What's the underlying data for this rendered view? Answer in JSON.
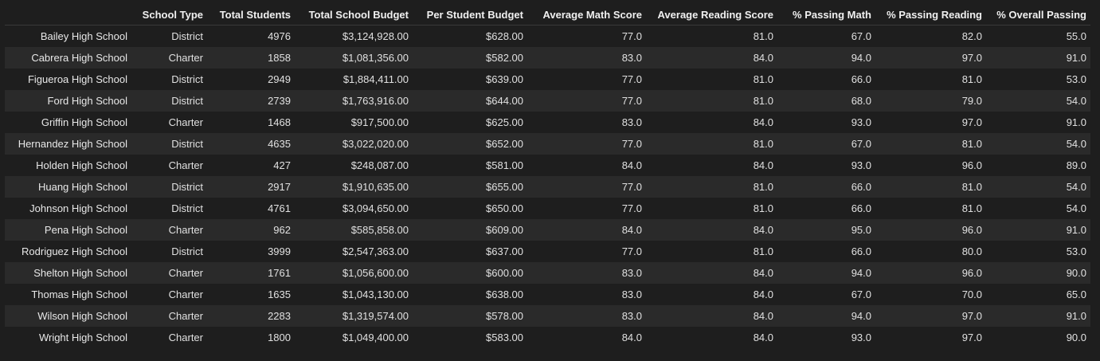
{
  "table": {
    "columns": [
      "",
      "School Type",
      "Total Students",
      "Total School Budget",
      "Per Student Budget",
      "Average Math Score",
      "Average Reading Score",
      "% Passing Math",
      "% Passing Reading",
      "% Overall Passing"
    ],
    "rows": [
      {
        "name": "Bailey High School",
        "cells": [
          "District",
          "4976",
          "$3,124,928.00",
          "$628.00",
          "77.0",
          "81.0",
          "67.0",
          "82.0",
          "55.0"
        ]
      },
      {
        "name": "Cabrera High School",
        "cells": [
          "Charter",
          "1858",
          "$1,081,356.00",
          "$582.00",
          "83.0",
          "84.0",
          "94.0",
          "97.0",
          "91.0"
        ]
      },
      {
        "name": "Figueroa High School",
        "cells": [
          "District",
          "2949",
          "$1,884,411.00",
          "$639.00",
          "77.0",
          "81.0",
          "66.0",
          "81.0",
          "53.0"
        ]
      },
      {
        "name": "Ford High School",
        "cells": [
          "District",
          "2739",
          "$1,763,916.00",
          "$644.00",
          "77.0",
          "81.0",
          "68.0",
          "79.0",
          "54.0"
        ]
      },
      {
        "name": "Griffin High School",
        "cells": [
          "Charter",
          "1468",
          "$917,500.00",
          "$625.00",
          "83.0",
          "84.0",
          "93.0",
          "97.0",
          "91.0"
        ]
      },
      {
        "name": "Hernandez High School",
        "cells": [
          "District",
          "4635",
          "$3,022,020.00",
          "$652.00",
          "77.0",
          "81.0",
          "67.0",
          "81.0",
          "54.0"
        ]
      },
      {
        "name": "Holden High School",
        "cells": [
          "Charter",
          "427",
          "$248,087.00",
          "$581.00",
          "84.0",
          "84.0",
          "93.0",
          "96.0",
          "89.0"
        ]
      },
      {
        "name": "Huang High School",
        "cells": [
          "District",
          "2917",
          "$1,910,635.00",
          "$655.00",
          "77.0",
          "81.0",
          "66.0",
          "81.0",
          "54.0"
        ]
      },
      {
        "name": "Johnson High School",
        "cells": [
          "District",
          "4761",
          "$3,094,650.00",
          "$650.00",
          "77.0",
          "81.0",
          "66.0",
          "81.0",
          "54.0"
        ]
      },
      {
        "name": "Pena High School",
        "cells": [
          "Charter",
          "962",
          "$585,858.00",
          "$609.00",
          "84.0",
          "84.0",
          "95.0",
          "96.0",
          "91.0"
        ]
      },
      {
        "name": "Rodriguez High School",
        "cells": [
          "District",
          "3999",
          "$2,547,363.00",
          "$637.00",
          "77.0",
          "81.0",
          "66.0",
          "80.0",
          "53.0"
        ]
      },
      {
        "name": "Shelton High School",
        "cells": [
          "Charter",
          "1761",
          "$1,056,600.00",
          "$600.00",
          "83.0",
          "84.0",
          "94.0",
          "96.0",
          "90.0"
        ]
      },
      {
        "name": "Thomas High School",
        "cells": [
          "Charter",
          "1635",
          "$1,043,130.00",
          "$638.00",
          "83.0",
          "84.0",
          "67.0",
          "70.0",
          "65.0"
        ]
      },
      {
        "name": "Wilson High School",
        "cells": [
          "Charter",
          "2283",
          "$1,319,574.00",
          "$578.00",
          "83.0",
          "84.0",
          "94.0",
          "97.0",
          "91.0"
        ]
      },
      {
        "name": "Wright High School",
        "cells": [
          "Charter",
          "1800",
          "$1,049,400.00",
          "$583.00",
          "84.0",
          "84.0",
          "93.0",
          "97.0",
          "90.0"
        ]
      }
    ]
  }
}
